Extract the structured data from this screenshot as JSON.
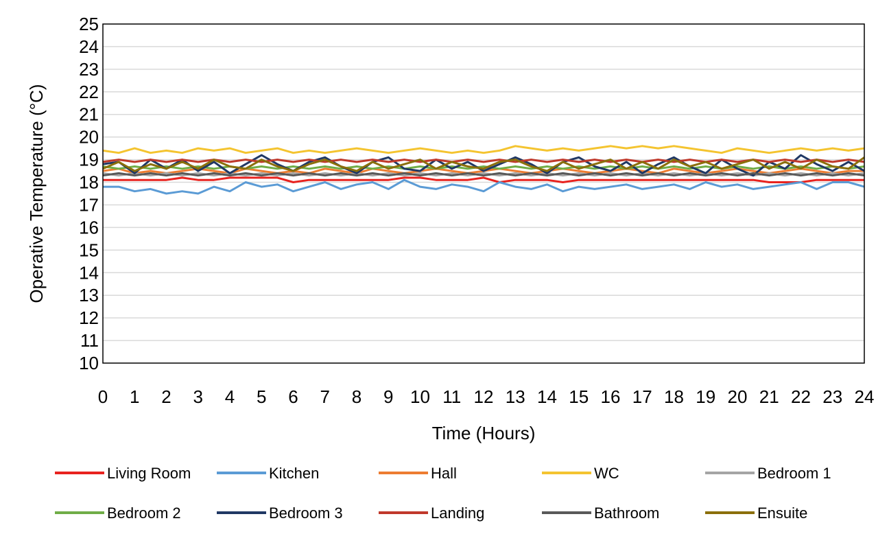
{
  "chart_data": {
    "type": "line",
    "title": "",
    "xlabel": "Time (Hours)",
    "ylabel": "Operative Temperature (°C)",
    "xlim": [
      0,
      24
    ],
    "ylim": [
      10,
      25
    ],
    "x_ticks": [
      "0",
      "1",
      "2",
      "3",
      "4",
      "5",
      "6",
      "7",
      "8",
      "9",
      "10",
      "11",
      "12",
      "13",
      "14",
      "15",
      "16",
      "17",
      "18",
      "19",
      "20",
      "21",
      "22",
      "23",
      "24"
    ],
    "y_ticks": [
      "10",
      "11",
      "12",
      "13",
      "14",
      "15",
      "16",
      "17",
      "18",
      "19",
      "20",
      "21",
      "22",
      "23",
      "24",
      "25"
    ],
    "grid": "horizontal",
    "legend_position": "bottom",
    "x": [
      0,
      0.5,
      1,
      1.5,
      2,
      2.5,
      3,
      3.5,
      4,
      4.5,
      5,
      5.5,
      6,
      6.5,
      7,
      7.5,
      8,
      8.5,
      9,
      9.5,
      10,
      10.5,
      11,
      11.5,
      12,
      12.5,
      13,
      13.5,
      14,
      14.5,
      15,
      15.5,
      16,
      16.5,
      17,
      17.5,
      18,
      18.5,
      19,
      19.5,
      20,
      20.5,
      21,
      21.5,
      22,
      22.5,
      23,
      23.5,
      24
    ],
    "series": [
      {
        "name": "Living Room",
        "color": "#e8231f",
        "values": [
          18.1,
          18.1,
          18.1,
          18.1,
          18.1,
          18.2,
          18.1,
          18.1,
          18.2,
          18.2,
          18.2,
          18.2,
          18.0,
          18.1,
          18.1,
          18.1,
          18.1,
          18.1,
          18.1,
          18.2,
          18.2,
          18.1,
          18.1,
          18.1,
          18.2,
          18.0,
          18.1,
          18.1,
          18.1,
          18.0,
          18.1,
          18.1,
          18.1,
          18.1,
          18.1,
          18.1,
          18.1,
          18.1,
          18.1,
          18.1,
          18.1,
          18.1,
          18.0,
          18.0,
          18.0,
          18.1,
          18.1,
          18.1,
          18.1
        ]
      },
      {
        "name": "Kitchen",
        "color": "#5b9bd5",
        "values": [
          17.8,
          17.8,
          17.6,
          17.7,
          17.5,
          17.6,
          17.5,
          17.8,
          17.6,
          18.0,
          17.8,
          17.9,
          17.6,
          17.8,
          18.0,
          17.7,
          17.9,
          18.0,
          17.7,
          18.1,
          17.8,
          17.7,
          17.9,
          17.8,
          17.6,
          18.0,
          17.8,
          17.7,
          17.9,
          17.6,
          17.8,
          17.7,
          17.8,
          17.9,
          17.7,
          17.8,
          17.9,
          17.7,
          18.0,
          17.8,
          17.9,
          17.7,
          17.8,
          17.9,
          18.0,
          17.7,
          18.0,
          18.0,
          17.8
        ]
      },
      {
        "name": "Hall",
        "color": "#ed7d31",
        "values": [
          18.5,
          18.6,
          18.4,
          18.5,
          18.4,
          18.5,
          18.6,
          18.5,
          18.4,
          18.6,
          18.5,
          18.4,
          18.5,
          18.4,
          18.6,
          18.5,
          18.4,
          18.6,
          18.5,
          18.4,
          18.5,
          18.6,
          18.5,
          18.4,
          18.5,
          18.6,
          18.5,
          18.4,
          18.5,
          18.6,
          18.5,
          18.4,
          18.5,
          18.6,
          18.5,
          18.4,
          18.6,
          18.5,
          18.4,
          18.5,
          18.6,
          18.5,
          18.4,
          18.5,
          18.6,
          18.5,
          18.4,
          18.5,
          18.5
        ]
      },
      {
        "name": "WC",
        "color": "#f4c430",
        "values": [
          19.4,
          19.3,
          19.5,
          19.3,
          19.4,
          19.3,
          19.5,
          19.4,
          19.5,
          19.3,
          19.4,
          19.5,
          19.3,
          19.4,
          19.3,
          19.4,
          19.5,
          19.4,
          19.3,
          19.4,
          19.5,
          19.4,
          19.3,
          19.4,
          19.3,
          19.4,
          19.6,
          19.5,
          19.4,
          19.5,
          19.4,
          19.5,
          19.6,
          19.5,
          19.6,
          19.5,
          19.6,
          19.5,
          19.4,
          19.3,
          19.5,
          19.4,
          19.3,
          19.4,
          19.5,
          19.4,
          19.5,
          19.4,
          19.5
        ]
      },
      {
        "name": "Bedroom 1",
        "color": "#a5a5a5",
        "values": [
          18.4,
          18.3,
          18.4,
          18.3,
          18.4,
          18.3,
          18.4,
          18.3,
          18.4,
          18.3,
          18.4,
          18.3,
          18.4,
          18.3,
          18.4,
          18.3,
          18.4,
          18.3,
          18.4,
          18.3,
          18.4,
          18.3,
          18.4,
          18.3,
          18.4,
          18.3,
          18.4,
          18.3,
          18.4,
          18.3,
          18.4,
          18.3,
          18.4,
          18.3,
          18.4,
          18.3,
          18.4,
          18.3,
          18.4,
          18.3,
          18.4,
          18.3,
          18.4,
          18.3,
          18.4,
          18.3,
          18.4,
          18.3,
          18.4
        ]
      },
      {
        "name": "Bedroom 2",
        "color": "#70ad47",
        "values": [
          18.7,
          18.6,
          18.7,
          18.6,
          18.7,
          18.6,
          18.7,
          18.6,
          18.7,
          18.6,
          18.7,
          18.6,
          18.7,
          18.6,
          18.7,
          18.6,
          18.7,
          18.6,
          18.7,
          18.6,
          18.7,
          18.6,
          18.7,
          18.6,
          18.7,
          18.6,
          18.7,
          18.6,
          18.7,
          18.6,
          18.7,
          18.6,
          18.7,
          18.6,
          18.7,
          18.6,
          18.7,
          18.6,
          18.7,
          18.6,
          18.7,
          18.6,
          18.7,
          18.6,
          18.7,
          18.6,
          18.7,
          18.6,
          18.7
        ]
      },
      {
        "name": "Bedroom 3",
        "color": "#203864",
        "values": [
          18.8,
          18.9,
          18.4,
          19.0,
          18.6,
          19.0,
          18.5,
          18.9,
          18.4,
          18.8,
          19.2,
          18.8,
          18.5,
          18.9,
          19.1,
          18.7,
          18.4,
          18.9,
          19.1,
          18.6,
          18.5,
          19.0,
          18.6,
          18.9,
          18.5,
          18.8,
          19.1,
          18.8,
          18.4,
          18.9,
          19.1,
          18.7,
          18.5,
          18.9,
          18.4,
          18.8,
          19.1,
          18.7,
          18.4,
          19.0,
          18.6,
          18.3,
          18.9,
          18.6,
          19.2,
          18.8,
          18.5,
          18.9,
          18.5
        ]
      },
      {
        "name": "Landing",
        "color": "#c0392b",
        "values": [
          18.9,
          19.0,
          18.9,
          19.0,
          18.9,
          19.0,
          18.9,
          19.0,
          18.9,
          19.0,
          18.9,
          19.0,
          18.9,
          19.0,
          18.9,
          19.0,
          18.9,
          19.0,
          18.9,
          19.0,
          18.9,
          19.0,
          18.9,
          19.0,
          18.9,
          19.0,
          18.9,
          19.0,
          18.9,
          19.0,
          18.9,
          19.0,
          18.9,
          19.0,
          18.9,
          19.0,
          18.9,
          19.0,
          18.9,
          19.0,
          18.9,
          19.0,
          18.9,
          19.0,
          18.9,
          19.0,
          18.9,
          19.0,
          18.9
        ]
      },
      {
        "name": "Bathroom",
        "color": "#595959",
        "values": [
          18.3,
          18.4,
          18.3,
          18.4,
          18.3,
          18.4,
          18.3,
          18.4,
          18.3,
          18.4,
          18.3,
          18.4,
          18.3,
          18.4,
          18.3,
          18.4,
          18.3,
          18.4,
          18.3,
          18.4,
          18.3,
          18.4,
          18.3,
          18.4,
          18.3,
          18.4,
          18.3,
          18.4,
          18.3,
          18.4,
          18.3,
          18.4,
          18.3,
          18.4,
          18.3,
          18.4,
          18.3,
          18.4,
          18.3,
          18.4,
          18.3,
          18.4,
          18.3,
          18.4,
          18.3,
          18.4,
          18.3,
          18.4,
          18.3
        ]
      },
      {
        "name": "Ensuite",
        "color": "#8b6f0b",
        "values": [
          18.6,
          18.9,
          18.5,
          18.8,
          18.6,
          18.9,
          18.6,
          19.0,
          18.7,
          18.6,
          19.0,
          18.7,
          18.5,
          18.8,
          19.0,
          18.7,
          18.5,
          18.9,
          18.6,
          18.8,
          19.0,
          18.6,
          18.9,
          18.7,
          18.6,
          18.9,
          19.0,
          18.7,
          18.5,
          18.9,
          18.6,
          18.8,
          19.0,
          18.6,
          18.9,
          18.6,
          19.0,
          18.7,
          18.9,
          18.6,
          18.8,
          19.0,
          18.6,
          18.9,
          18.6,
          19.0,
          18.7,
          18.6,
          19.1
        ]
      }
    ]
  }
}
